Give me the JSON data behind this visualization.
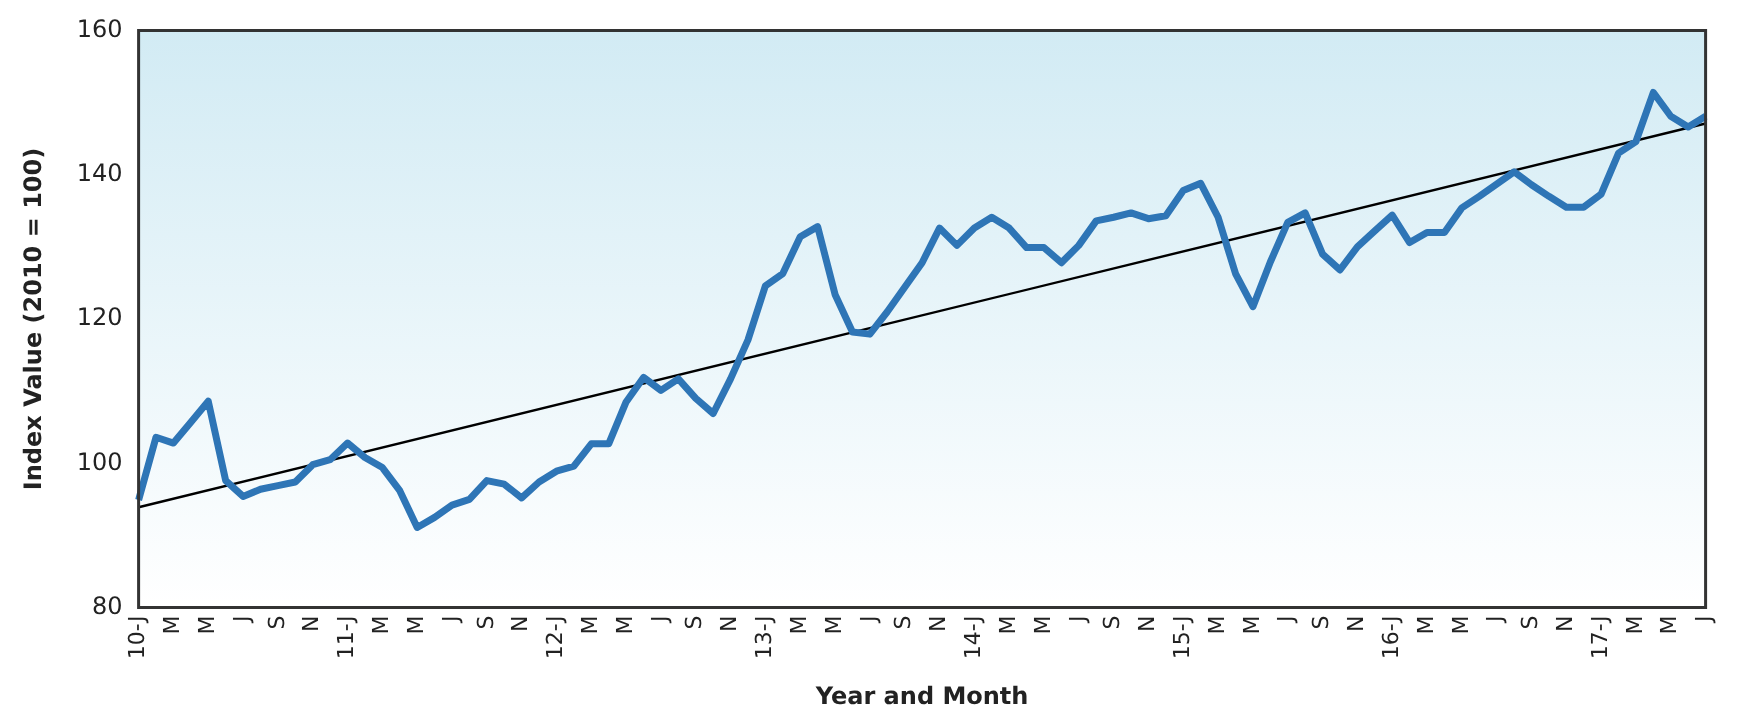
{
  "chart_data": {
    "type": "line",
    "xlabel": "Year and Month",
    "ylabel": "Index Value (2010 = 100)",
    "categories": [
      "10-J",
      null,
      "M",
      null,
      "M",
      null,
      "J",
      null,
      "S",
      null,
      "N",
      null,
      "11-J",
      null,
      "M",
      null,
      "M",
      null,
      "J",
      null,
      "S",
      null,
      "N",
      null,
      "12-J",
      null,
      "M",
      null,
      "M",
      null,
      "J",
      null,
      "S",
      null,
      "N",
      null,
      "13-J",
      null,
      "M",
      null,
      "M",
      null,
      "J",
      null,
      "S",
      null,
      "N",
      null,
      "14-J",
      null,
      "M",
      null,
      "M",
      null,
      "J",
      null,
      "S",
      null,
      "N",
      null,
      "15-J",
      null,
      "M",
      null,
      "M",
      null,
      "J",
      null,
      "S",
      null,
      "N",
      null,
      "16-J",
      null,
      "M",
      null,
      "M",
      null,
      "J",
      null,
      "S",
      null,
      "N",
      null,
      "17-J",
      null,
      "M",
      null,
      "M",
      null,
      "J"
    ],
    "series": [
      {
        "color": "#2e75b6",
        "values": [
          94.9,
          103.6,
          102.8,
          105.7,
          108.6,
          97.6,
          95.4,
          96.4,
          96.9,
          97.4,
          99.8,
          100.5,
          102.8,
          100.8,
          99.4,
          96.2,
          91.1,
          92.5,
          94.2,
          95,
          97.6,
          97.1,
          95.2,
          97.4,
          98.9,
          99.6,
          102.7,
          102.7,
          108.5,
          111.9,
          110.1,
          111.7,
          109,
          106.9,
          111.7,
          117.1,
          124.6,
          126.3,
          131.4,
          132.8,
          123.4,
          118.2,
          117.9,
          121,
          124.4,
          127.8,
          132.6,
          130.2,
          132.6,
          134.1,
          132.6,
          129.9,
          129.9,
          127.8,
          130.2,
          133.6,
          134.1,
          134.7,
          133.9,
          134.3,
          137.8,
          138.8,
          134.1,
          126.3,
          121.7,
          127.9,
          133.4,
          134.7,
          129,
          126.8,
          130,
          132.2,
          134.4,
          130.6,
          132,
          132,
          135.4,
          137,
          138.7,
          140.4,
          138.6,
          137,
          135.5,
          135.5,
          137.3,
          143,
          144.6,
          151.4,
          148.1,
          146.6,
          148.1
        ]
      },
      {
        "type": "line",
        "color": "#000000",
        "values": [
          93.9,
          null,
          null,
          null,
          null,
          null,
          null,
          null,
          null,
          null,
          null,
          null,
          null,
          null,
          null,
          null,
          null,
          null,
          null,
          null,
          null,
          null,
          null,
          null,
          null,
          null,
          null,
          null,
          null,
          null,
          null,
          null,
          null,
          null,
          null,
          null,
          null,
          null,
          null,
          null,
          null,
          null,
          null,
          null,
          null,
          null,
          null,
          null,
          null,
          null,
          null,
          null,
          null,
          null,
          null,
          null,
          null,
          null,
          null,
          null,
          null,
          null,
          null,
          null,
          null,
          null,
          null,
          null,
          null,
          null,
          null,
          null,
          null,
          null,
          null,
          null,
          null,
          null,
          null,
          null,
          null,
          null,
          null,
          null,
          null,
          null,
          null,
          null,
          null,
          null,
          147.1
        ]
      }
    ],
    "ylim": [
      80,
      160
    ],
    "yticks": [
      80,
      100,
      120,
      140,
      160
    ],
    "grid": false,
    "legend": false,
    "marker": "none"
  }
}
